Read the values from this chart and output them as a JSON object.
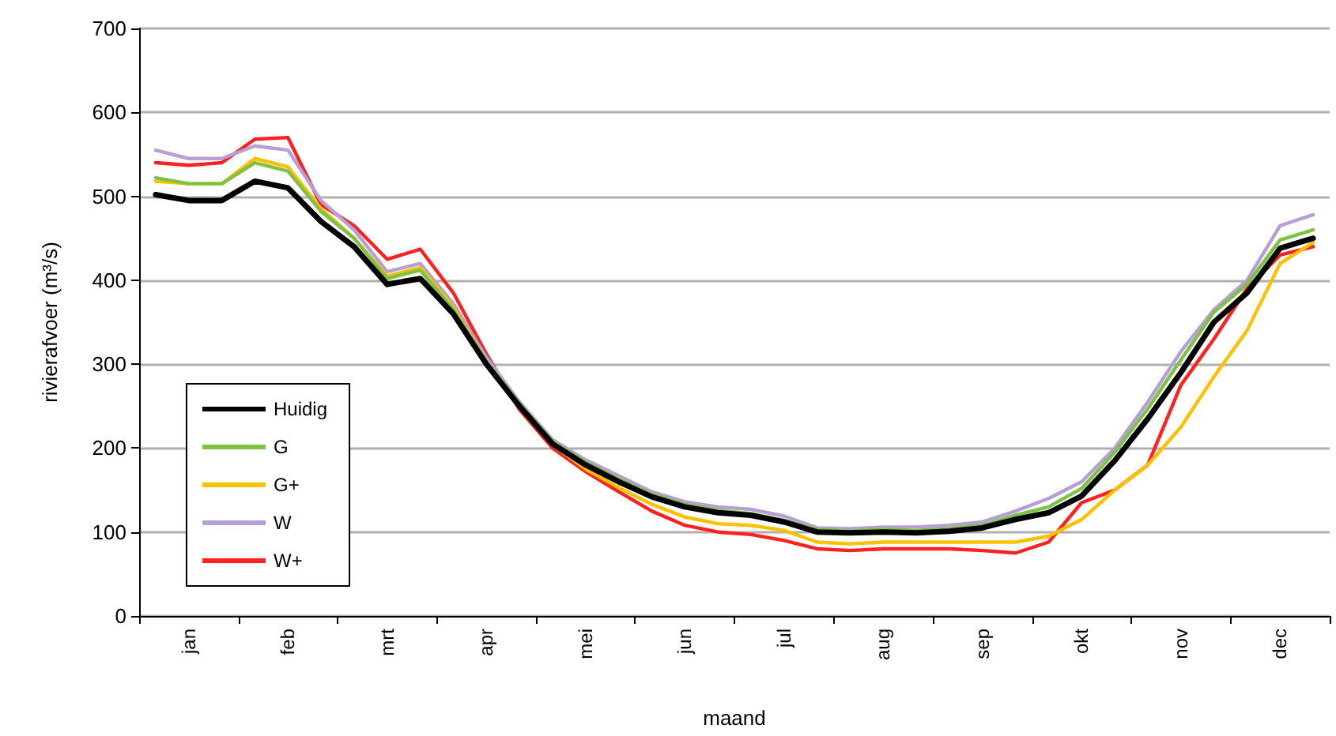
{
  "chart_data": {
    "type": "line",
    "xlabel": "maand",
    "ylabel": "rivierafvoer (m³/s)",
    "categories": [
      null,
      "jan",
      null,
      null,
      "feb",
      null,
      null,
      "mrt",
      null,
      null,
      "apr",
      null,
      null,
      "mei",
      null,
      null,
      "jun",
      null,
      null,
      "jul",
      null,
      null,
      "aug",
      null,
      null,
      "sep",
      null,
      null,
      "okt",
      null,
      null,
      "nov",
      null,
      null,
      "dec",
      null
    ],
    "series": [
      {
        "name": "Huidig",
        "color": "#000000",
        "values": [
          502,
          495,
          495,
          518,
          510,
          470,
          440,
          395,
          402,
          360,
          300,
          250,
          205,
          180,
          160,
          142,
          130,
          123,
          120,
          112,
          100,
          99,
          100,
          99,
          101,
          105,
          115,
          123,
          143,
          185,
          235,
          290,
          350,
          385,
          438,
          450
        ]
      },
      {
        "name": "G",
        "color": "#7dc242",
        "values": [
          522,
          515,
          515,
          540,
          530,
          482,
          450,
          402,
          412,
          365,
          303,
          253,
          208,
          183,
          163,
          145,
          133,
          126,
          122,
          114,
          103,
          101,
          103,
          102,
          104,
          108,
          120,
          130,
          152,
          195,
          247,
          305,
          362,
          395,
          448,
          460
        ]
      },
      {
        "name": "G+",
        "color": "#ffc000",
        "values": [
          518,
          515,
          515,
          545,
          535,
          485,
          450,
          405,
          415,
          368,
          303,
          250,
          204,
          175,
          153,
          133,
          118,
          110,
          108,
          102,
          88,
          86,
          88,
          88,
          88,
          88,
          88,
          95,
          115,
          150,
          180,
          225,
          285,
          340,
          420,
          445
        ]
      },
      {
        "name": "W",
        "color": "#b79fd6",
        "values": [
          555,
          545,
          545,
          560,
          555,
          495,
          460,
          410,
          420,
          372,
          308,
          255,
          210,
          186,
          167,
          148,
          136,
          130,
          127,
          119,
          105,
          104,
          106,
          106,
          108,
          112,
          125,
          140,
          160,
          200,
          255,
          315,
          365,
          400,
          465,
          478
        ]
      },
      {
        "name": "W+",
        "color": "#ff2020",
        "values": [
          540,
          537,
          540,
          568,
          570,
          490,
          465,
          425,
          437,
          385,
          312,
          246,
          200,
          172,
          148,
          125,
          108,
          100,
          97,
          90,
          80,
          78,
          80,
          80,
          80,
          78,
          75,
          88,
          135,
          150,
          180,
          275,
          330,
          390,
          430,
          440
        ]
      }
    ],
    "ylim": [
      0,
      700
    ],
    "yticks": [
      0,
      100,
      200,
      300,
      400,
      500,
      600,
      700
    ],
    "grid": "y",
    "legend": "bottom left",
    "marker": "none",
    "line_style": "solid"
  }
}
